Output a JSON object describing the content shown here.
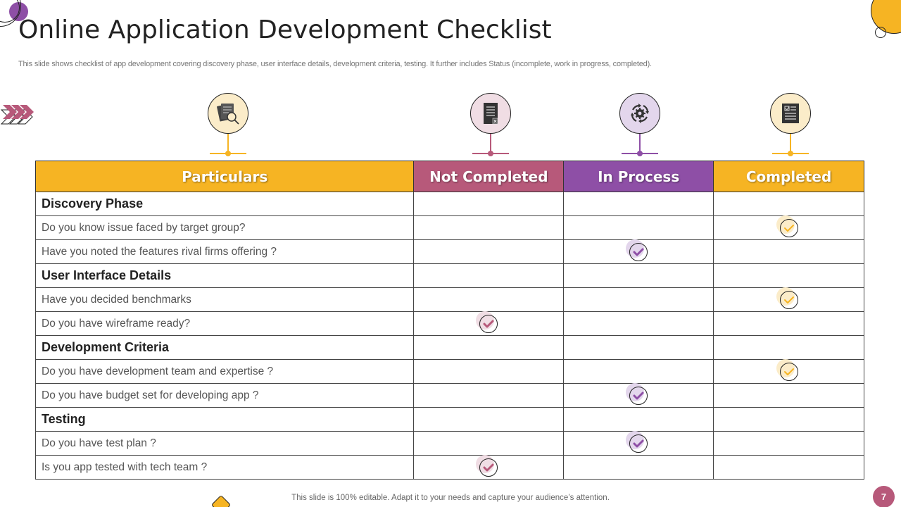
{
  "header": {
    "title": "Online Application Development Checklist",
    "subtitle": "This slide shows checklist of app development covering discovery phase, user interface details, development criteria, testing. It further includes Status (incomplete,  work in progress, completed)."
  },
  "colors": {
    "orange": "#f6b423",
    "rose": "#b7597a",
    "purple": "#8e4fa6",
    "orange_light": "#fbecc9",
    "rose_light": "#f0dde4",
    "purple_light": "#e3d6ec"
  },
  "column_icons": [
    {
      "name": "documents-search-icon",
      "column": "Particulars"
    },
    {
      "name": "document-cancel-icon",
      "column": "Not Completed"
    },
    {
      "name": "gear-cycle-icon",
      "column": "In Process"
    },
    {
      "name": "checklist-document-icon",
      "column": "Completed"
    }
  ],
  "table": {
    "headers": [
      "Particulars",
      "Not Completed",
      "In Process",
      "Completed"
    ],
    "rows": [
      {
        "label": "Discovery Phase",
        "section": true,
        "status": ""
      },
      {
        "label": "Do you know issue faced by target group?",
        "section": false,
        "status": "completed"
      },
      {
        "label": "Have you noted the features rival firms offering ?",
        "section": false,
        "status": "in_process"
      },
      {
        "label": "User Interface Details",
        "section": true,
        "status": ""
      },
      {
        "label": "Have you decided benchmarks",
        "section": false,
        "status": "completed"
      },
      {
        "label": "Do you have wireframe ready?",
        "section": false,
        "status": "not_completed"
      },
      {
        "label": "Development Criteria",
        "section": true,
        "status": ""
      },
      {
        "label": "Do you have development team and expertise ?",
        "section": false,
        "status": "completed"
      },
      {
        "label": "Do you have budget set for developing app ?",
        "section": false,
        "status": "in_process"
      },
      {
        "label": "Testing",
        "section": true,
        "status": ""
      },
      {
        "label": "Do you have test plan ?",
        "section": false,
        "status": "in_process"
      },
      {
        "label": "Is you app tested with tech team ?",
        "section": false,
        "status": "not_completed"
      }
    ]
  },
  "footer": {
    "text": "This slide is 100% editable. Adapt it to your needs and capture your audience’s attention.",
    "page_number": "7"
  }
}
